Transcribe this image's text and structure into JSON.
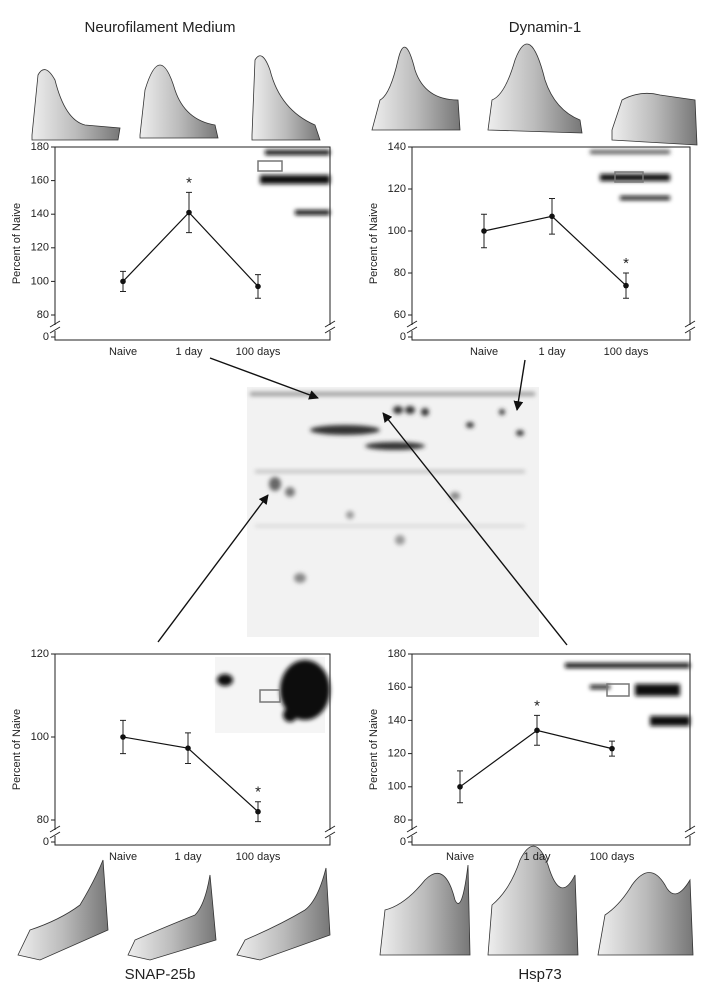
{
  "chart_data": [
    {
      "type": "line",
      "title": "Neurofilament Medium",
      "y_label": "Percent of Naive",
      "categories": [
        "Naive",
        "1 day",
        "100 days"
      ],
      "values": [
        100,
        141,
        97
      ],
      "errors": [
        6,
        12,
        7
      ],
      "color": "#111111",
      "ylim": [
        0,
        180
      ],
      "y_break": [
        0,
        80
      ],
      "yticks": [
        0,
        80,
        100,
        120,
        140,
        160,
        180
      ],
      "annotations": [
        {
          "label": "*",
          "category": "1 day"
        }
      ]
    },
    {
      "type": "line",
      "title": "Dynamin-1",
      "y_label": "Percent of Naive",
      "categories": [
        "Naive",
        "1 day",
        "100 days"
      ],
      "values": [
        100,
        107,
        74
      ],
      "errors": [
        8,
        8.5,
        6
      ],
      "color": "#111111",
      "ylim": [
        0,
        140
      ],
      "y_break": [
        0,
        60
      ],
      "yticks": [
        0,
        60,
        80,
        100,
        120,
        140
      ],
      "annotations": [
        {
          "label": "*",
          "category": "100 days"
        }
      ]
    },
    {
      "type": "line",
      "title": "SNAP-25b",
      "y_label": "Percent of Naive",
      "categories": [
        "Naive",
        "1 day",
        "100 days"
      ],
      "values": [
        100,
        97.3,
        82
      ],
      "errors": [
        4,
        3.7,
        2.4
      ],
      "color": "#111111",
      "ylim": [
        0,
        120
      ],
      "y_break": [
        0,
        80
      ],
      "yticks": [
        0,
        80,
        100,
        120
      ],
      "annotations": [
        {
          "label": "*",
          "category": "100 days"
        }
      ]
    },
    {
      "type": "line",
      "title": "Hsp73",
      "y_label": "Percent of Naive",
      "categories": [
        "Naive",
        "1 day",
        "100 days"
      ],
      "values": [
        100,
        134,
        123
      ],
      "errors": [
        9.6,
        9,
        4.5
      ],
      "color": "#111111",
      "ylim": [
        0,
        180
      ],
      "y_break": [
        0,
        80
      ],
      "yticks": [
        0,
        80,
        100,
        120,
        140,
        160,
        180
      ],
      "annotations": [
        {
          "label": "*",
          "category": "1 day"
        }
      ]
    }
  ]
}
